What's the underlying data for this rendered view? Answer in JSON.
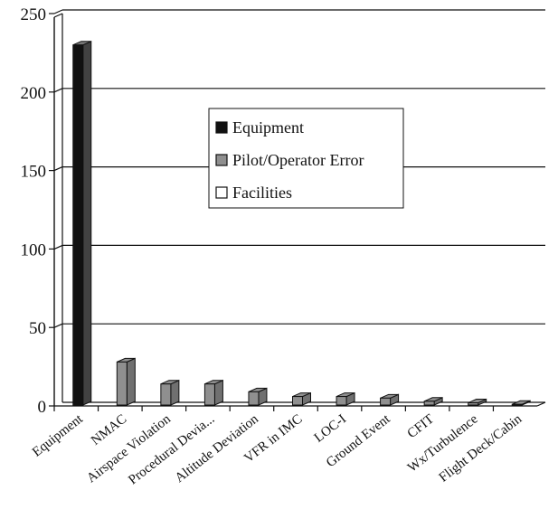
{
  "chart_data": {
    "type": "bar",
    "title": "",
    "xlabel": "",
    "ylabel": "",
    "ylim": [
      0,
      250
    ],
    "yticks": [
      0,
      50,
      100,
      150,
      200,
      250
    ],
    "grid": true,
    "legend_position": "center",
    "categories": [
      "Equipment",
      "NMAC",
      "Airspace Violation",
      "Procedural Devia...",
      "Altitude Deviation",
      "VFR in IMC",
      "LOC-I",
      "Ground Event",
      "CFIT",
      "Wx/Turbulence",
      "Flight Deck/Cabin"
    ],
    "series": [
      {
        "name": "Equipment",
        "color": "#111111",
        "values": [
          230,
          0,
          0,
          0,
          0,
          0,
          0,
          0,
          0,
          0,
          0
        ]
      },
      {
        "name": "Pilot/Operator Error",
        "color": "#8f8f8f",
        "values": [
          0,
          28,
          14,
          14,
          9,
          6,
          6,
          5,
          3,
          2,
          1
        ]
      },
      {
        "name": "Facilities",
        "color": "#ffffff",
        "values": [
          0,
          0,
          0,
          0,
          0,
          0,
          0,
          0,
          0,
          0,
          0
        ]
      }
    ]
  }
}
